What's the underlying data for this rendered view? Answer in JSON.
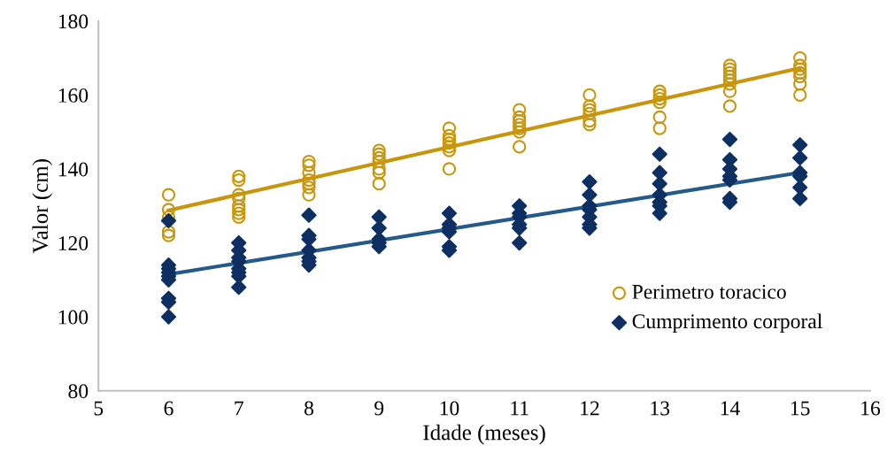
{
  "chart_data": {
    "type": "scatter",
    "xlabel": "Idade (meses)",
    "ylabel": "Valor (cm)",
    "xlim": [
      5,
      16
    ],
    "ylim": [
      80,
      180
    ],
    "xticks": [
      5,
      6,
      7,
      8,
      9,
      10,
      11,
      12,
      13,
      14,
      15,
      16
    ],
    "yticks": [
      80,
      100,
      120,
      140,
      160,
      180
    ],
    "grid": false,
    "legend": "bottom right",
    "series": [
      {
        "name": "Perimetro toracico",
        "color": "#c8960c",
        "marker": "circle",
        "x": [
          6,
          6,
          6,
          6,
          6,
          7,
          7,
          7,
          7,
          7,
          7,
          7,
          7,
          8,
          8,
          8,
          8,
          8,
          8,
          8,
          9,
          9,
          9,
          9,
          9,
          9,
          9,
          10,
          10,
          10,
          10,
          10,
          10,
          10,
          11,
          11,
          11,
          11,
          11,
          11,
          11,
          12,
          12,
          12,
          12,
          12,
          12,
          13,
          13,
          13,
          13,
          13,
          13,
          14,
          14,
          14,
          14,
          14,
          14,
          14,
          14,
          15,
          15,
          15,
          15,
          15,
          15,
          15
        ],
        "values": [
          133,
          129,
          127,
          123,
          122,
          138,
          137,
          133,
          132,
          130,
          129,
          128,
          127,
          142,
          141,
          139,
          137,
          136,
          135,
          133,
          145,
          144,
          143,
          142,
          140,
          139,
          136,
          151,
          149,
          148,
          147,
          146,
          145,
          140,
          156,
          154,
          153,
          152,
          151,
          150,
          146,
          160,
          157,
          156,
          155,
          153,
          152,
          161,
          160,
          159,
          158,
          154,
          151,
          168,
          167,
          166,
          165,
          164,
          163,
          161,
          157,
          170,
          168,
          167,
          166,
          165,
          163,
          160
        ]
      },
      {
        "name": "Cumprimento corporal",
        "color": "#0d2f62",
        "marker": "diamond",
        "x": [
          6,
          6,
          6,
          6,
          6,
          6,
          6,
          6,
          6,
          7,
          7,
          7,
          7,
          7,
          7,
          7,
          7,
          8,
          8,
          8,
          8,
          8,
          8,
          8,
          9,
          9,
          9,
          9,
          9,
          10,
          10,
          10,
          10,
          10,
          10,
          11,
          11,
          11,
          11,
          11,
          11,
          12,
          12,
          12,
          12,
          12,
          12,
          12,
          13,
          13,
          13,
          13,
          13,
          13,
          13,
          14,
          14,
          14,
          14,
          14,
          14,
          14,
          15,
          15,
          15,
          15,
          15,
          15
        ],
        "values": [
          126,
          114,
          113,
          112,
          111,
          110,
          105,
          104,
          100,
          120,
          118,
          116,
          115,
          113,
          112,
          111,
          108,
          127.5,
          122,
          121,
          118,
          116,
          115,
          114,
          127,
          124,
          121,
          120,
          119,
          128,
          125,
          124,
          123,
          119,
          118,
          130,
          128,
          127,
          125,
          124,
          120,
          136.5,
          133,
          130,
          129,
          127,
          125,
          124,
          144,
          139,
          136,
          133,
          131,
          130,
          128,
          148,
          142.5,
          140,
          138,
          137,
          132,
          131,
          146.5,
          143,
          139,
          138,
          135,
          132
        ]
      },
      {
        "type": "line",
        "color": "#c8960c",
        "x": [
          6,
          15
        ],
        "values": [
          128.8,
          167.3
        ]
      },
      {
        "type": "line",
        "color": "#245a8a",
        "x": [
          6,
          15
        ],
        "values": [
          111.5,
          139
        ]
      }
    ]
  }
}
